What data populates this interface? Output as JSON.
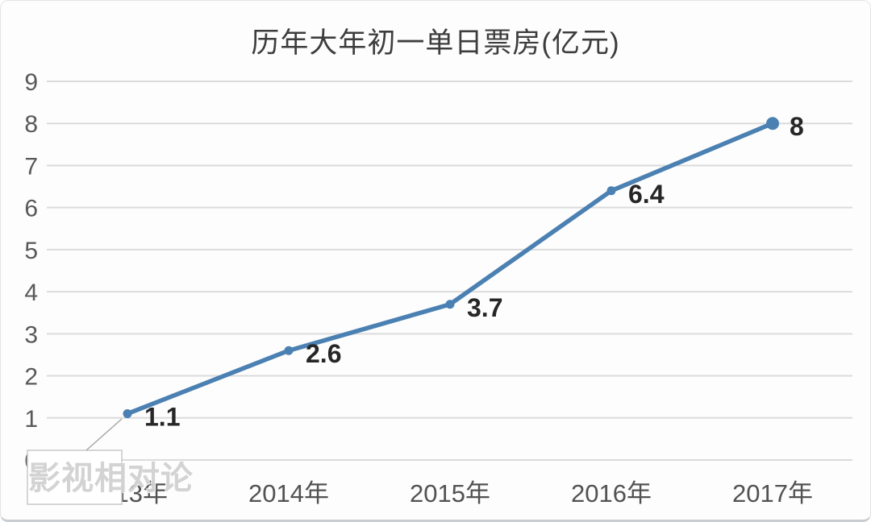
{
  "chart_data": {
    "type": "line",
    "title": "历年大年初一单日票房(亿元)",
    "categories": [
      "2013年",
      "2014年",
      "2015年",
      "2016年",
      "2017年"
    ],
    "values": [
      1.1,
      2.6,
      3.7,
      6.4,
      8
    ],
    "data_labels": [
      "1.1",
      "2.6",
      "3.7",
      "6.4",
      "8"
    ],
    "y_ticks": [
      0,
      1,
      2,
      3,
      4,
      5,
      6,
      7,
      8,
      9
    ],
    "ylim": [
      0,
      9
    ],
    "xlabel": "",
    "ylabel": "",
    "legend": "none",
    "grid": "horizontal",
    "colors": {
      "line": "#4b80b2",
      "marker": "#4b80b2",
      "gridline": "#dbdbdb",
      "axis_text": "#595959",
      "data_label_text": "#262626",
      "title_text": "#3d3d3d",
      "leader_line": "#a8a8a8",
      "callout_border": "#c8c8c8"
    },
    "watermark": "影视相对论"
  }
}
